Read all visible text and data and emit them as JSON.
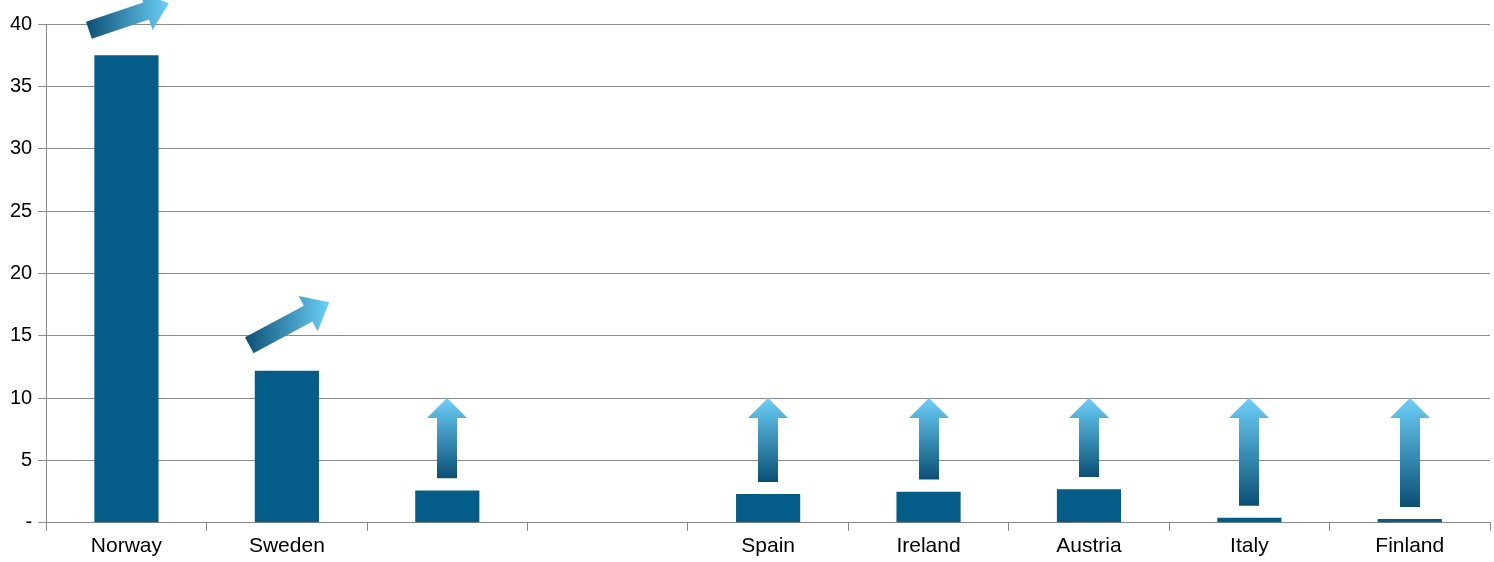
{
  "chart_data": {
    "type": "bar",
    "categories": [
      "Norway",
      "Sweden",
      null,
      null,
      "Spain",
      "Ireland",
      "Austria",
      "Italy",
      "Finland"
    ],
    "values": [
      37.5,
      12.2,
      2.6,
      null,
      2.3,
      2.5,
      2.7,
      0.4,
      0.3
    ],
    "color": "#045d88",
    "ylim": [
      0,
      40
    ],
    "yticks": [
      {
        "value": 0,
        "label": "-"
      },
      5,
      10,
      15,
      20,
      25,
      30,
      35,
      40
    ],
    "grid": "y",
    "legend": false
  }
}
